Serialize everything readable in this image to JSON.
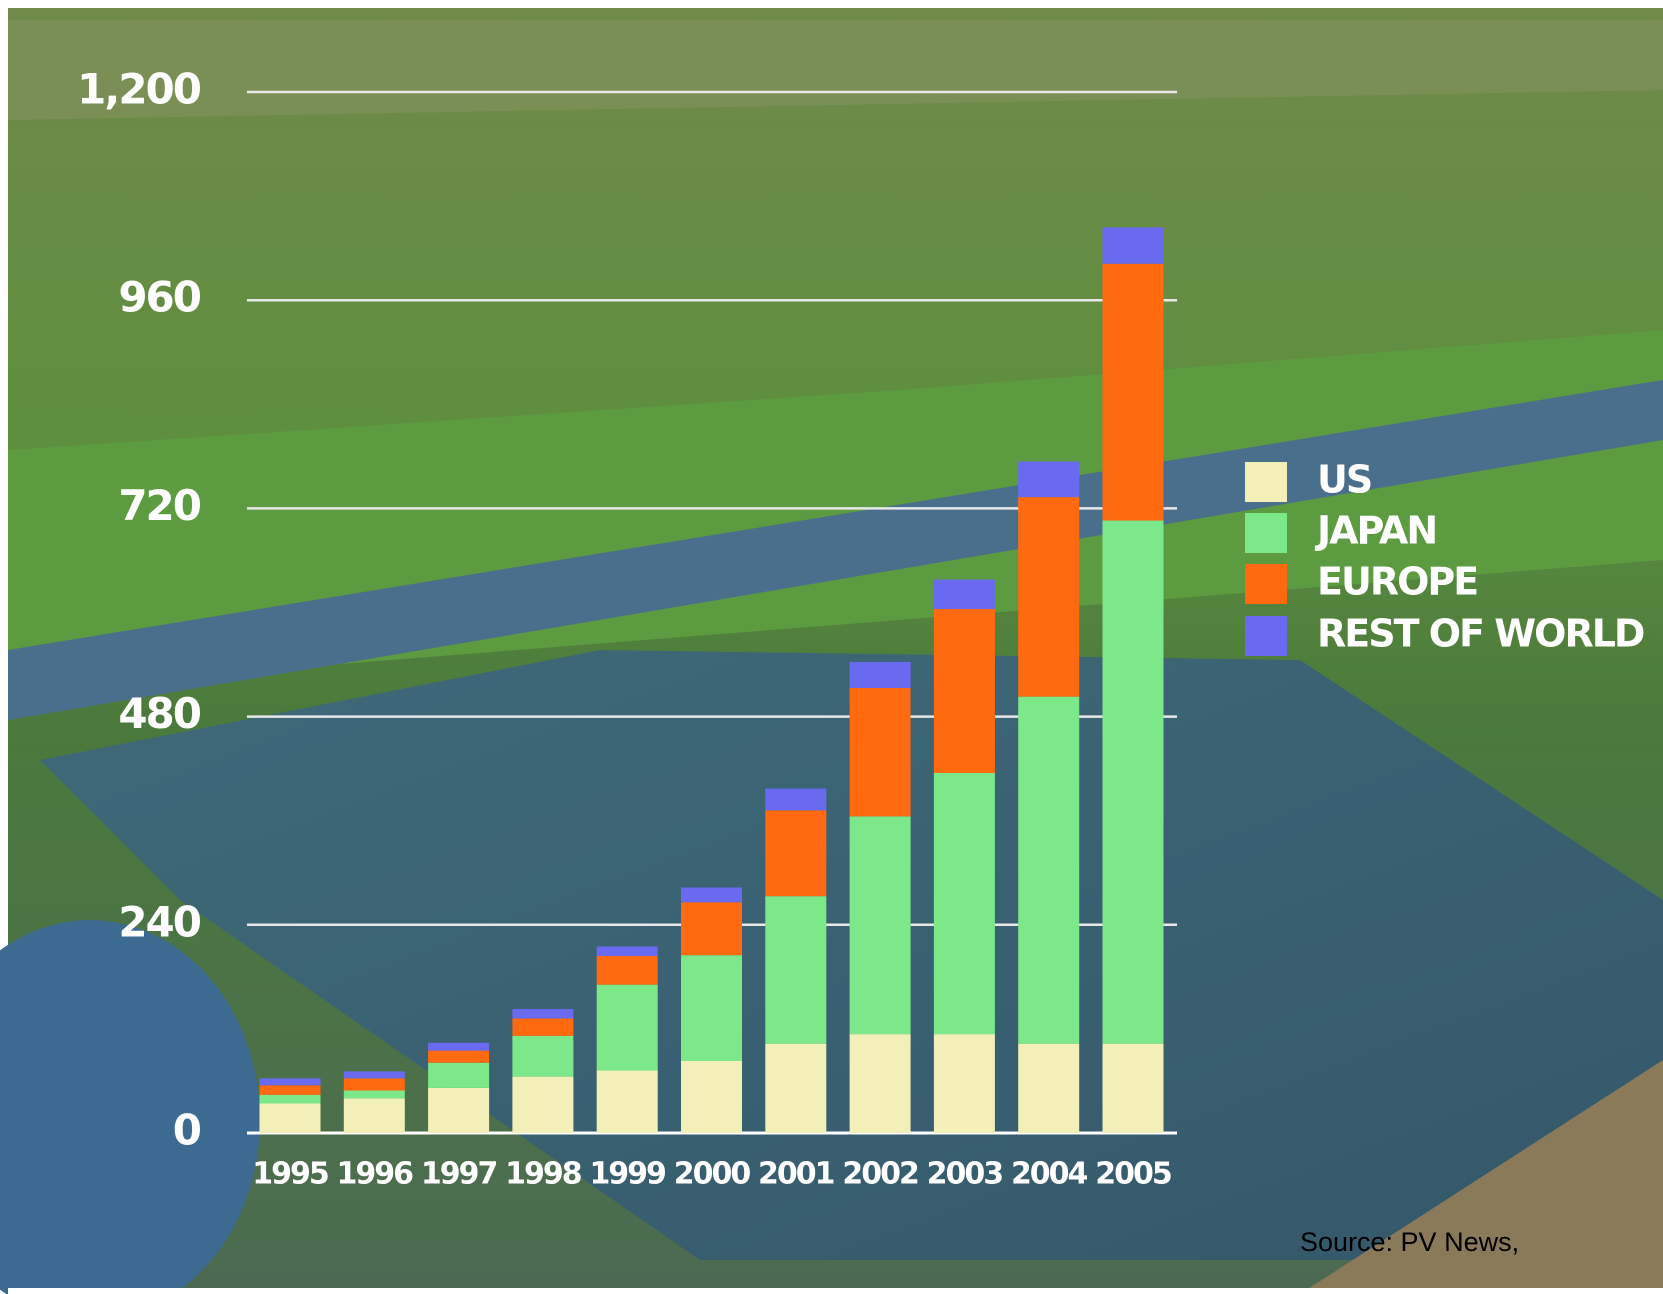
{
  "chart_data": {
    "type": "stacked_bar",
    "categories": [
      "1995",
      "1996",
      "1997",
      "1998",
      "1999",
      "2000",
      "2001",
      "2002",
      "2003",
      "2004",
      "2005"
    ],
    "series": [
      {
        "name": "US",
        "color": "#f2f0b8",
        "values": [
          34,
          40,
          52,
          65,
          72,
          83,
          103,
          114,
          114,
          103,
          103
        ]
      },
      {
        "name": "JAPAN",
        "color": "#7de88a",
        "values": [
          10,
          9,
          29,
          47,
          99,
          122,
          170,
          251,
          301,
          400,
          603
        ]
      },
      {
        "name": "EUROPE",
        "color": "#ff6a10",
        "values": [
          11,
          14,
          14,
          20,
          33,
          61,
          99,
          148,
          189,
          230,
          296
        ]
      },
      {
        "name": "REST OF WORLD",
        "color": "#6a6af0",
        "values": [
          8,
          8,
          9,
          11,
          11,
          17,
          25,
          30,
          34,
          41,
          42
        ]
      }
    ],
    "ylim": [
      0,
      1200
    ],
    "yticks": [
      0,
      240,
      480,
      720,
      960,
      {
        "value": 1200,
        "label": "1,200"
      }
    ],
    "grid": true,
    "source": "Source: PV News,"
  }
}
